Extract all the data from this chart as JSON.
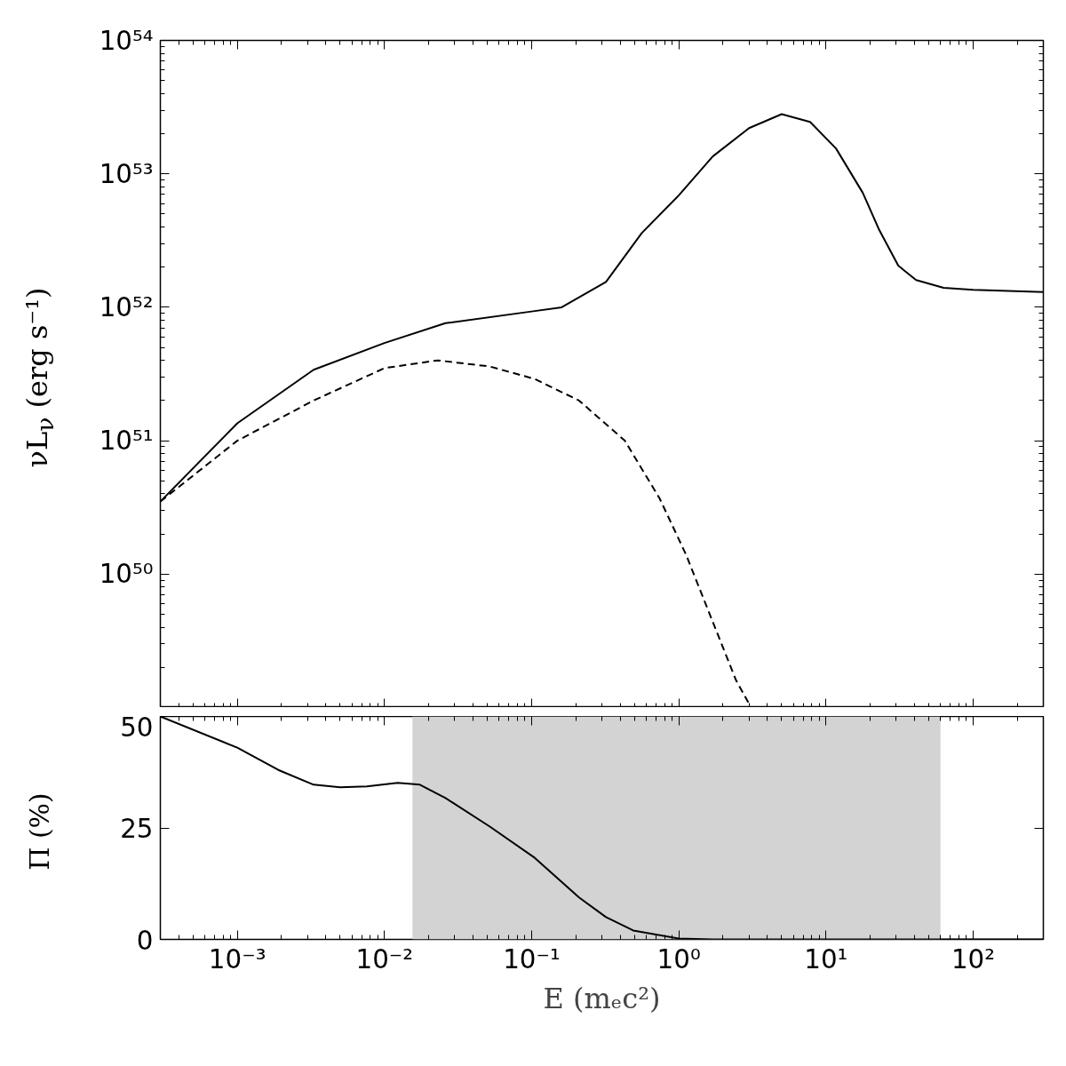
{
  "chart_data": [
    {
      "type": "line",
      "ylabel": "νL$_{ν}$ (erg s⁻¹)",
      "log": "xy",
      "tick_labels": "y",
      "xlim": [
        0.0003,
        300
      ],
      "ylim": [
        1e+49,
        1e+54
      ],
      "xticks": [
        {
          "value": 0.001,
          "label": null
        },
        {
          "value": 0.01,
          "label": null
        },
        {
          "value": 0.1,
          "label": null
        },
        {
          "value": 1,
          "label": null
        },
        {
          "value": 10,
          "label": null
        },
        {
          "value": 100,
          "label": null
        }
      ],
      "yticks": [
        {
          "value": 1e+49,
          "label": null
        },
        {
          "value": 1e+50,
          "label": "10⁵⁰"
        },
        {
          "value": 1e+51,
          "label": "10⁵¹"
        },
        {
          "value": 1e+52,
          "label": "10⁵²"
        },
        {
          "value": 1e+53,
          "label": "10⁵³"
        },
        {
          "value": 1e+54,
          "label": "10⁵⁴"
        }
      ],
      "series": [
        {
          "color": "#000000",
          "line_style": "solid",
          "x": [
            0.0003,
            0.001,
            0.0033,
            0.01,
            0.026,
            0.1,
            0.16,
            0.32,
            0.56,
            1,
            1.7,
            3.0,
            5.0,
            7.8,
            11.7,
            17.8,
            23,
            31,
            41,
            63,
            100,
            300
          ],
          "values": [
            3.5e+50,
            1.35e+51,
            3.4e+51,
            5.4e+51,
            7.6e+51,
            9.3e+51,
            1e+52,
            1.55e+52,
            3.6e+52,
            6.9e+52,
            1.35e+53,
            2.2e+53,
            2.8e+53,
            2.45e+53,
            1.55e+53,
            7.2e+52,
            3.8e+52,
            2.05e+52,
            1.6e+52,
            1.4e+52,
            1.35e+52,
            1.3e+52
          ]
        },
        {
          "color": "#000000",
          "line_style": "dashed",
          "x": [
            0.0003,
            0.001,
            0.0033,
            0.01,
            0.023,
            0.052,
            0.105,
            0.21,
            0.43,
            0.74,
            1.12,
            1.7,
            2.45,
            3.1
          ],
          "values": [
            3.5e+50,
            1e+51,
            2e+51,
            3.5e+51,
            4e+51,
            3.6e+51,
            2.9e+51,
            2e+51,
            1e+51,
            3.7e+50,
            1.4e+50,
            4.4e+49,
            1.6e+49,
            1e+49
          ]
        }
      ]
    },
    {
      "type": "line",
      "xlabel": "E (mₑc²)",
      "ylabel": "Π (%)",
      "log": "x",
      "xlim": [
        0.0003,
        300
      ],
      "ylim": [
        0,
        50
      ],
      "xticks": [
        {
          "value": 0.001,
          "label": "10⁻³"
        },
        {
          "value": 0.01,
          "label": "10⁻²"
        },
        {
          "value": 0.1,
          "label": "10⁻¹"
        },
        {
          "value": 1,
          "label": "10⁰"
        },
        {
          "value": 10,
          "label": "10¹"
        },
        {
          "value": 100,
          "label": "10²"
        }
      ],
      "yticks": [
        0,
        25,
        50
      ],
      "bands": [
        {
          "axis": "x",
          "from": 0.0155,
          "to": 60,
          "color": "#d3d3d3"
        }
      ],
      "series": [
        {
          "color": "#000000",
          "line_style": "solid",
          "x": [
            0.0003,
            0.001,
            0.0019,
            0.0033,
            0.005,
            0.0076,
            0.0123,
            0.0174,
            0.026,
            0.052,
            0.105,
            0.21,
            0.32,
            0.49,
            1,
            1.7,
            300
          ],
          "values": [
            50,
            43,
            38,
            34.7,
            34.1,
            34.3,
            35.1,
            34.7,
            31.7,
            25.3,
            18.3,
            9.4,
            5.0,
            2.0,
            0.2,
            0,
            0
          ]
        }
      ]
    }
  ]
}
